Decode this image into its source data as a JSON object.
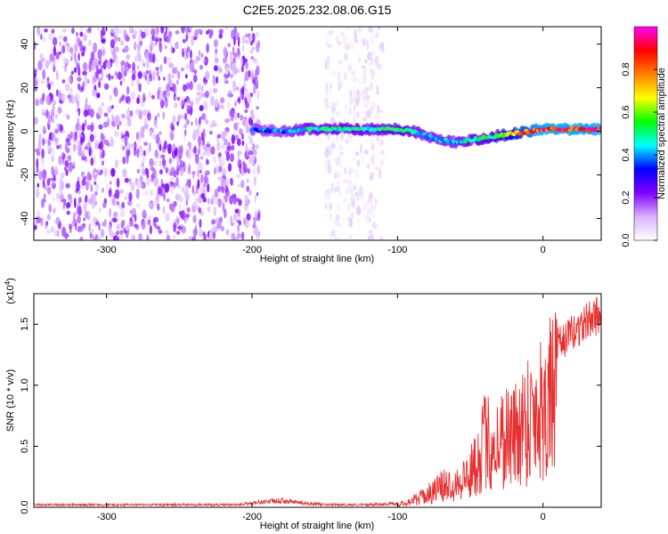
{
  "title": "C2E5.2025.232.08.06.G15",
  "chart_data": [
    {
      "type": "heatmap",
      "xlabel": "Height of straight line (km)",
      "ylabel": "Frequency (Hz)",
      "xlim": [
        -350,
        40
      ],
      "ylim": [
        -50,
        48
      ],
      "x_ticks": [
        -300,
        -200,
        -100,
        0
      ],
      "x_tick_labels": [
        "-300",
        "-200",
        "-100",
        "0"
      ],
      "y_ticks": [
        -40,
        -20,
        0,
        20,
        40
      ],
      "y_tick_labels": [
        "-40",
        "-20",
        "0",
        "20",
        "40"
      ],
      "colorbar": {
        "label": "Normalized spectral amplitude",
        "range": [
          0,
          1
        ],
        "ticks": [
          0.0,
          0.2,
          0.4,
          0.6,
          0.8
        ],
        "tick_labels": [
          "0.0",
          "0.2",
          "0.4",
          "0.6",
          "0.8"
        ],
        "colors": [
          "#ffffff",
          "#d9b3ff",
          "#8000ff",
          "#0000ff",
          "#00ffff",
          "#00ff00",
          "#ffff00",
          "#ff8000",
          "#ff0000",
          "#ff00ff"
        ]
      },
      "signal_track": {
        "x": [
          -200,
          -180,
          -160,
          -140,
          -120,
          -100,
          -90,
          -80,
          -70,
          -60,
          -50,
          -40,
          -30,
          -20,
          -10,
          0,
          10,
          20,
          30,
          40
        ],
        "frequency": [
          1,
          0,
          1,
          1,
          1,
          1,
          0,
          -2,
          -4,
          -5,
          -4,
          -3,
          -2,
          -1,
          0,
          1,
          1,
          1,
          1,
          1
        ],
        "amplitude": [
          0.4,
          0.4,
          0.5,
          0.5,
          0.5,
          0.55,
          0.5,
          0.45,
          0.45,
          0.45,
          0.5,
          0.55,
          0.6,
          0.75,
          0.85,
          0.9,
          0.9,
          0.9,
          0.9,
          0.9
        ]
      },
      "noise_regions": [
        {
          "x_range": [
            -350,
            -195
          ],
          "amplitude": 0.15,
          "density": "dense"
        },
        {
          "x_range": [
            -150,
            -110
          ],
          "amplitude": 0.05,
          "density": "sparse"
        }
      ]
    },
    {
      "type": "line",
      "xlabel": "Height of straight line (km)",
      "ylabel": "SNR (10 * v/v)",
      "y_scale_label": "(x10",
      "y_scale_exponent": "4",
      "y_scale_close": ")",
      "xlim": [
        -350,
        40
      ],
      "ylim": [
        0,
        1.75
      ],
      "x_ticks": [
        -300,
        -200,
        -100,
        0
      ],
      "x_tick_labels": [
        "-300",
        "-200",
        "-100",
        "0"
      ],
      "y_ticks": [
        0.0,
        0.5,
        1.0,
        1.5
      ],
      "y_tick_labels": [
        "0.0",
        "0.5",
        "1.0",
        "1.5"
      ],
      "color": "#e83030",
      "series": [
        {
          "x": [
            -350,
            -300,
            -250,
            -210,
            -195,
            -180,
            -170,
            -150,
            -120,
            -100,
            -90,
            -80,
            -70,
            -60,
            -50,
            -45,
            -40,
            -35,
            -30,
            -25,
            -20,
            -15,
            -10,
            -5,
            0,
            10,
            20,
            30,
            40
          ],
          "values": [
            0.02,
            0.02,
            0.02,
            0.02,
            0.04,
            0.05,
            0.04,
            0.02,
            0.02,
            0.03,
            0.08,
            0.15,
            0.25,
            0.3,
            0.4,
            0.6,
            0.8,
            0.75,
            0.8,
            0.9,
            0.85,
            1.0,
            1.1,
            1.15,
            1.25,
            1.4,
            1.5,
            1.6,
            1.68
          ]
        }
      ]
    }
  ]
}
